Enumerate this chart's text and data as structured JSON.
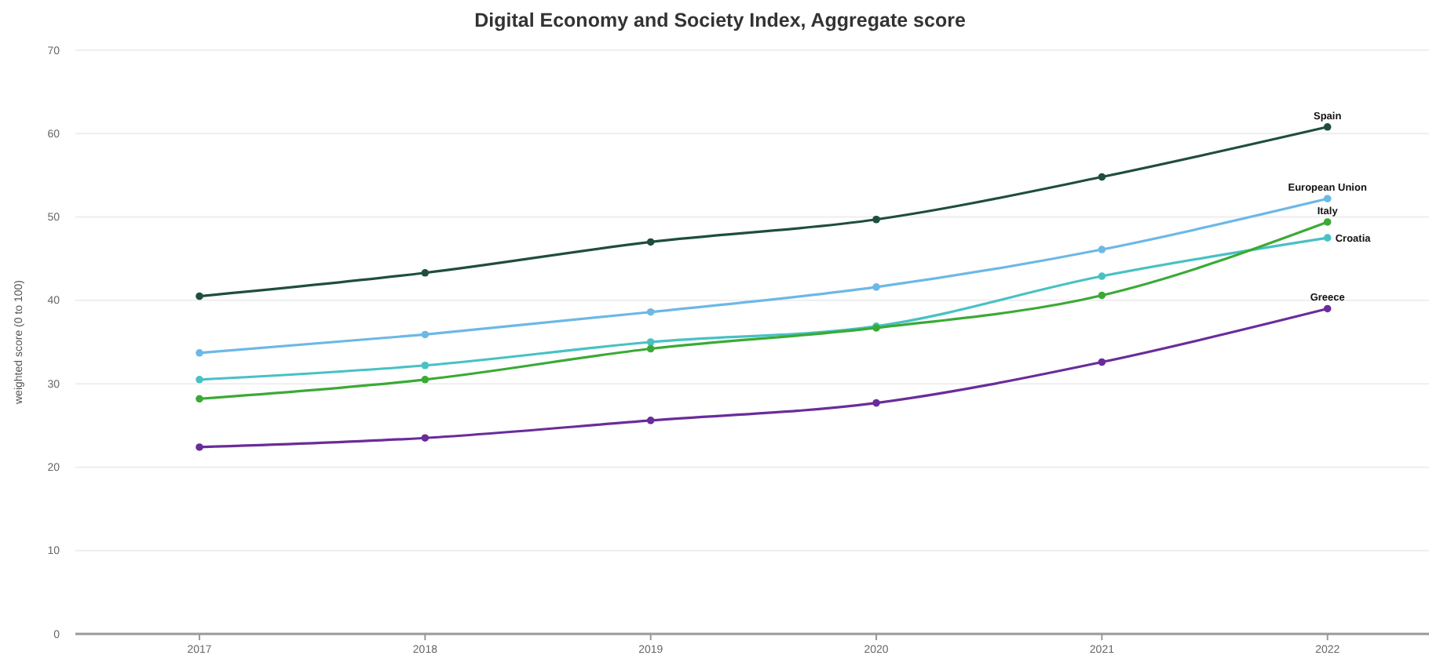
{
  "chart_data": {
    "type": "line",
    "title": "Digital Economy and Society Index, Aggregate score",
    "ylabel": "weighted score (0 to 100)",
    "x": [
      2017,
      2018,
      2019,
      2020,
      2021,
      2022
    ],
    "xlim": [
      2016.45,
      2022.45
    ],
    "xticks": [
      2017,
      2018,
      2019,
      2020,
      2021,
      2022
    ],
    "ylim": [
      0,
      70
    ],
    "yticks": [
      0,
      10,
      20,
      30,
      40,
      50,
      60,
      70
    ],
    "grid": "y",
    "marker": "circle",
    "line_style": "solid",
    "series": [
      {
        "name": "Spain",
        "color": "#1f4e3d",
        "values": [
          40.5,
          43.3,
          47.0,
          49.7,
          54.8,
          60.8
        ]
      },
      {
        "name": "European Union",
        "color": "#6cb8e6",
        "values": [
          33.7,
          35.9,
          38.6,
          41.6,
          46.1,
          52.2
        ]
      },
      {
        "name": "Italy",
        "color": "#3aaa35",
        "values": [
          28.2,
          30.5,
          34.2,
          36.7,
          40.6,
          49.4
        ]
      },
      {
        "name": "Croatia",
        "color": "#48c1c4",
        "values": [
          30.5,
          32.2,
          35.0,
          36.9,
          42.9,
          47.5
        ]
      },
      {
        "name": "Greece",
        "color": "#6a2c9a",
        "values": [
          22.4,
          23.5,
          25.6,
          27.7,
          32.6,
          39.0
        ]
      }
    ]
  }
}
